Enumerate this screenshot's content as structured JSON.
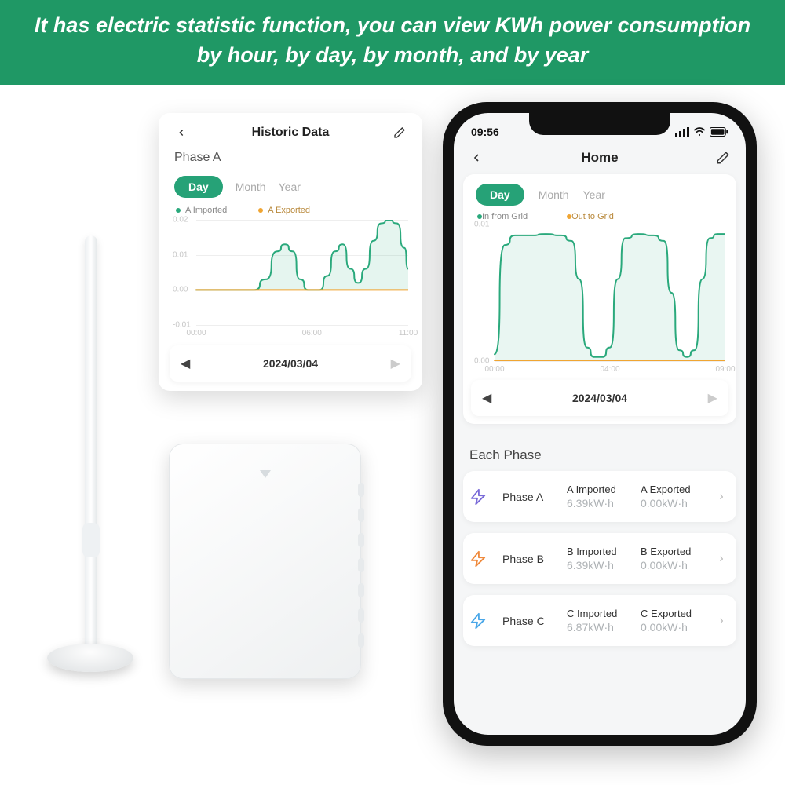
{
  "banner": {
    "text": "It has electric statistic function, you can view KWh power consumption by hour, by day, by month, and by year",
    "background": "#1f9865",
    "text_color": "#ffffff",
    "font_size": 27,
    "font_weight": "bold",
    "font_style": "italic"
  },
  "colors": {
    "accent": "#26a277",
    "orange": "#f0a532",
    "grid": "#eeeeee",
    "tick_text": "#c7c7c7",
    "muted_text": "#aaaaaa",
    "card_bg": "#ffffff",
    "app_bg": "#f5f6f7",
    "phone_shell": "#111111"
  },
  "left_card": {
    "title": "Historic Data",
    "phase_label": "Phase A",
    "range_tabs": {
      "active": "Day",
      "others": [
        "Month",
        "Year"
      ]
    },
    "legend": [
      {
        "color": "#2aa97c",
        "label": "A Imported"
      },
      {
        "color": "#f0a532",
        "label": "A Exported"
      }
    ],
    "chart": {
      "type": "line",
      "xlim": [
        0,
        11
      ],
      "ylim": [
        -0.01,
        0.02
      ],
      "yticks": [
        -0.01,
        0.0,
        0.01,
        0.02
      ],
      "xticks": [
        {
          "x": 0,
          "label": "00:00"
        },
        {
          "x": 6,
          "label": "06:00"
        },
        {
          "x": 11,
          "label": "11:00"
        }
      ],
      "series": [
        {
          "name": "A Imported",
          "color": "#2aa97c",
          "stroke_width": 2,
          "fill_opacity": 0.12,
          "points": [
            [
              0,
              0
            ],
            [
              3,
              0
            ],
            [
              3.6,
              0.003
            ],
            [
              4.2,
              0.011
            ],
            [
              4.6,
              0.013
            ],
            [
              5.0,
              0.011
            ],
            [
              5.4,
              0.003
            ],
            [
              5.8,
              0
            ],
            [
              6.4,
              0
            ],
            [
              6.8,
              0.004
            ],
            [
              7.2,
              0.011
            ],
            [
              7.6,
              0.013
            ],
            [
              8.0,
              0.006
            ],
            [
              8.4,
              0.002
            ],
            [
              8.8,
              0.006
            ],
            [
              9.2,
              0.014
            ],
            [
              9.6,
              0.019
            ],
            [
              10.0,
              0.02
            ],
            [
              10.4,
              0.019
            ],
            [
              10.8,
              0.012
            ],
            [
              11,
              0.006
            ]
          ]
        },
        {
          "name": "A Exported",
          "color": "#f0a532",
          "stroke_width": 2,
          "points": [
            [
              0,
              0
            ],
            [
              11,
              0
            ]
          ]
        }
      ],
      "background": "#ffffff",
      "grid_color": "#eeeeee"
    },
    "date_nav": {
      "prev": "◀",
      "date": "2024/03/04",
      "next": "▶"
    }
  },
  "phone": {
    "status": {
      "time": "09:56"
    },
    "header": {
      "title": "Home"
    },
    "range_tabs": {
      "active": "Day",
      "others": [
        "Month",
        "Year"
      ]
    },
    "legend": [
      {
        "color": "#2aa97c",
        "label": "In from Grid"
      },
      {
        "color": "#f0a532",
        "label": "Out to Grid"
      }
    ],
    "chart": {
      "type": "line",
      "xlim": [
        0,
        9
      ],
      "ylim": [
        0,
        0.01
      ],
      "yticks": [
        0,
        0.01
      ],
      "xticks": [
        {
          "x": 0,
          "label": "00:00"
        },
        {
          "x": 4.5,
          "label": "04:00"
        },
        {
          "x": 9,
          "label": "09:00"
        }
      ],
      "series": [
        {
          "name": "In from Grid",
          "color": "#2aa97c",
          "stroke_width": 2,
          "fill_opacity": 0.1,
          "points": [
            [
              0,
              0.0005
            ],
            [
              0.4,
              0.0085
            ],
            [
              0.8,
              0.0092
            ],
            [
              1.4,
              0.0092
            ],
            [
              2.0,
              0.0093
            ],
            [
              2.6,
              0.0092
            ],
            [
              3.0,
              0.0088
            ],
            [
              3.3,
              0.006
            ],
            [
              3.6,
              0.001
            ],
            [
              3.9,
              0.0003
            ],
            [
              4.2,
              0.0003
            ],
            [
              4.5,
              0.001
            ],
            [
              4.8,
              0.006
            ],
            [
              5.1,
              0.009
            ],
            [
              5.6,
              0.0093
            ],
            [
              6.2,
              0.0092
            ],
            [
              6.6,
              0.0088
            ],
            [
              6.9,
              0.005
            ],
            [
              7.2,
              0.0008
            ],
            [
              7.5,
              0.0003
            ],
            [
              7.8,
              0.0008
            ],
            [
              8.1,
              0.006
            ],
            [
              8.4,
              0.009
            ],
            [
              8.7,
              0.0093
            ],
            [
              9,
              0.0093
            ]
          ]
        },
        {
          "name": "Out to Grid",
          "color": "#f0a532",
          "stroke_width": 2,
          "points": [
            [
              0,
              0
            ],
            [
              9,
              0
            ]
          ]
        }
      ],
      "background": "#ffffff",
      "grid_color": "#eeeeee"
    },
    "date_nav": {
      "prev": "◀",
      "date": "2024/03/04",
      "next": "▶"
    },
    "each_phase_title": "Each Phase",
    "phases": [
      {
        "name": "Phase A",
        "icon_color": "#7a6bd8",
        "imported_label": "A Imported",
        "imported_value": "6.39kW·h",
        "exported_label": "A Exported",
        "exported_value": "0.00kW·h"
      },
      {
        "name": "Phase B",
        "icon_color": "#ef8a3d",
        "imported_label": "B Imported",
        "imported_value": "6.39kW·h",
        "exported_label": "B Exported",
        "exported_value": "0.00kW·h"
      },
      {
        "name": "Phase C",
        "icon_color": "#4aa7e8",
        "imported_label": "C Imported",
        "imported_value": "6.87kW·h",
        "exported_label": "C Exported",
        "exported_value": "0.00kW·h"
      }
    ]
  }
}
